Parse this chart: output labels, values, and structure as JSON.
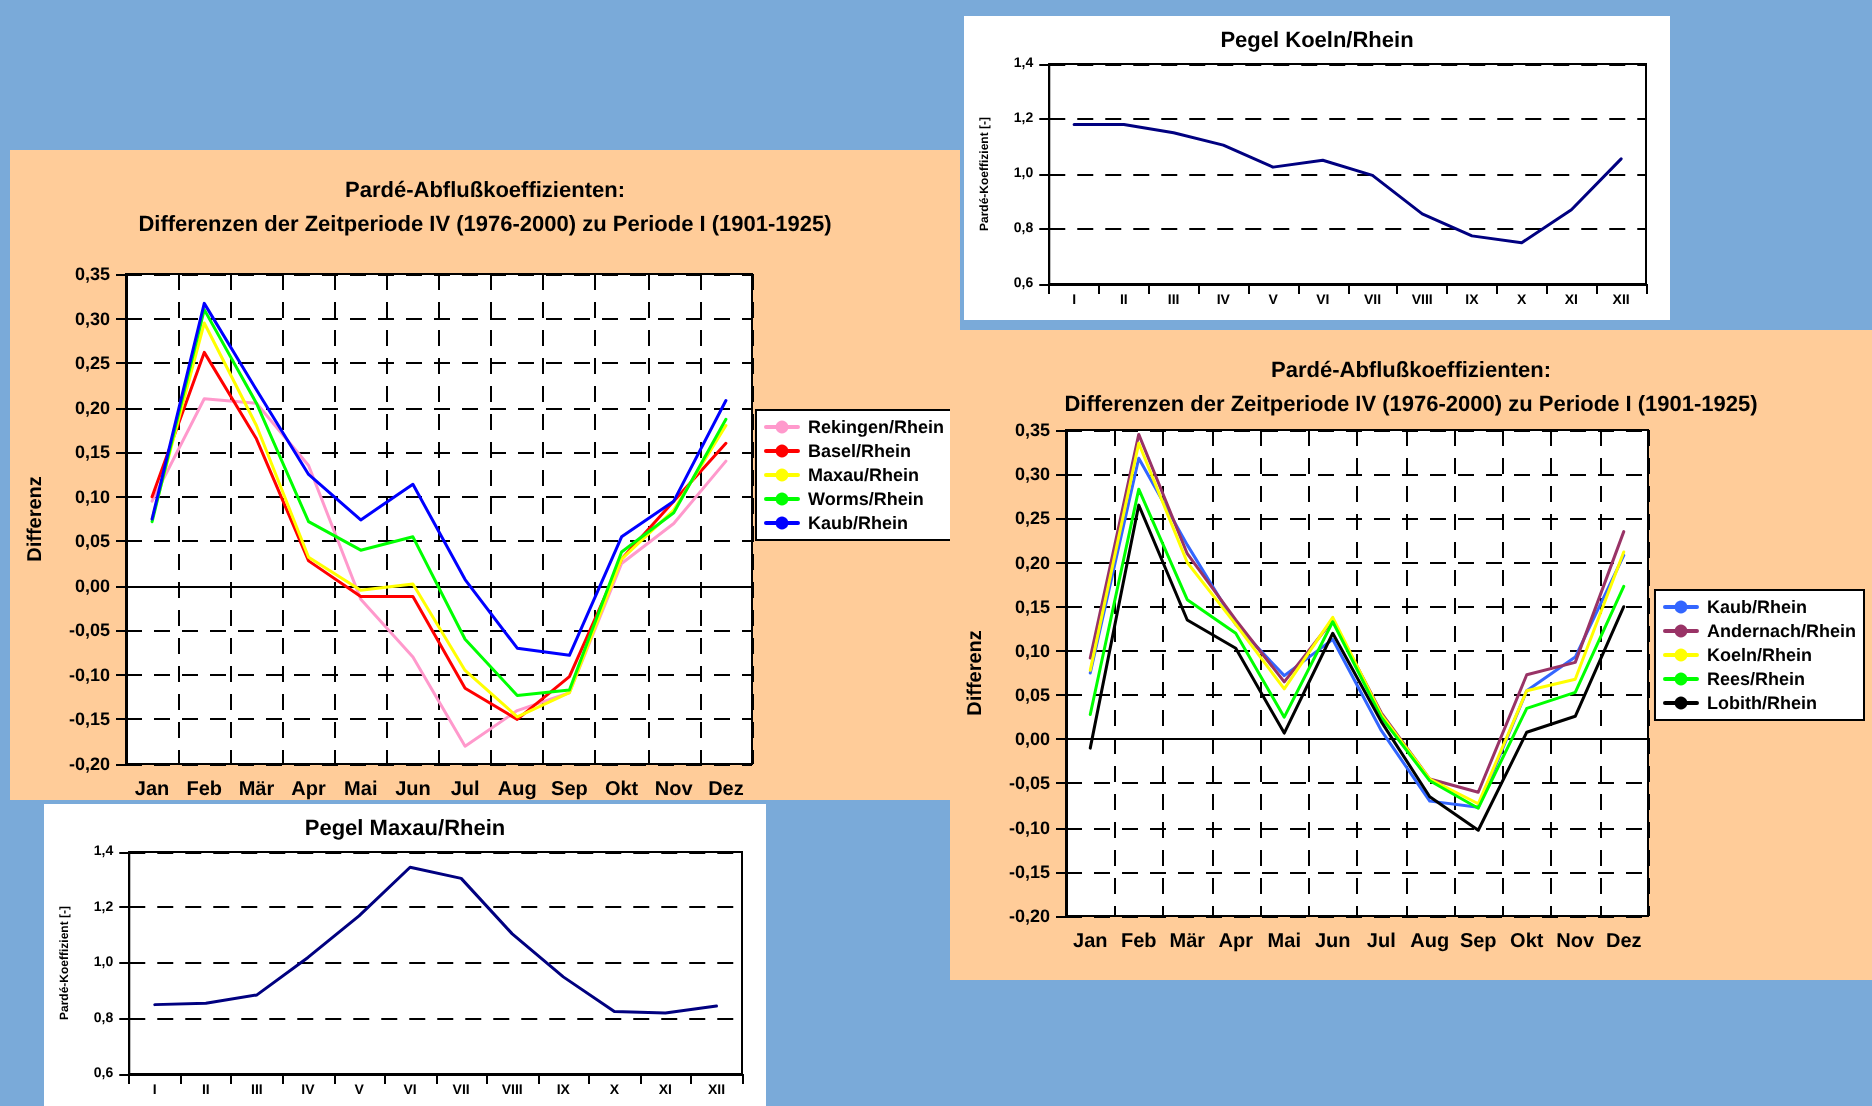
{
  "chart_data": [
    {
      "type": "line",
      "title": "Pardé-Abflußkoeffizienten:",
      "subtitle": "Differenzen der Zeitperiode IV (1976-2000) zu Periode I (1901-1925)",
      "ylabel": "Differenz",
      "categories": [
        "Jan",
        "Feb",
        "Mär",
        "Apr",
        "Mai",
        "Jun",
        "Jul",
        "Aug",
        "Sep",
        "Okt",
        "Nov",
        "Dez"
      ],
      "series": [
        {
          "name": "Rekingen/Rhein",
          "color": "#ff99cc",
          "values": [
            0.095,
            0.21,
            0.205,
            0.135,
            -0.015,
            -0.08,
            -0.18,
            -0.14,
            -0.12,
            0.025,
            0.07,
            0.14
          ]
        },
        {
          "name": "Basel/Rhein",
          "color": "#ff0000",
          "values": [
            0.1,
            0.262,
            0.165,
            0.028,
            -0.012,
            -0.012,
            -0.115,
            -0.15,
            -0.102,
            0.03,
            0.095,
            0.16
          ]
        },
        {
          "name": "Maxau/Rhein",
          "color": "#ffff00",
          "values": [
            0.075,
            0.295,
            0.18,
            0.032,
            -0.005,
            0.002,
            -0.095,
            -0.147,
            -0.12,
            0.03,
            0.085,
            0.18
          ]
        },
        {
          "name": "Worms/Rhein",
          "color": "#00ff00",
          "values": [
            0.072,
            0.31,
            0.205,
            0.072,
            0.04,
            0.055,
            -0.06,
            -0.123,
            -0.117,
            0.038,
            0.082,
            0.187
          ]
        },
        {
          "name": "Kaub/Rhein",
          "color": "#0000ff",
          "values": [
            0.075,
            0.317,
            0.22,
            0.125,
            0.074,
            0.114,
            0.007,
            -0.07,
            -0.078,
            0.055,
            0.095,
            0.208
          ]
        }
      ],
      "ylim": [
        -0.2,
        0.35
      ],
      "yticks": [
        {
          "value": -0.2,
          "label": "-0,20"
        },
        {
          "value": -0.15,
          "label": "-0,15"
        },
        {
          "value": -0.1,
          "label": "-0,10"
        },
        {
          "value": -0.05,
          "label": "-0,05"
        },
        {
          "value": 0,
          "label": "0,00"
        },
        {
          "value": 0.05,
          "label": "0,05"
        },
        {
          "value": 0.1,
          "label": "0,10"
        },
        {
          "value": 0.15,
          "label": "0,15"
        },
        {
          "value": 0.2,
          "label": "0,20"
        },
        {
          "value": 0.25,
          "label": "0,25"
        },
        {
          "value": 0.3,
          "label": "0,30"
        },
        {
          "value": 0.35,
          "label": "0,35"
        }
      ],
      "grid": true,
      "legend": "right",
      "marker": "none",
      "line_style": "solid"
    },
    {
      "type": "line",
      "title": "Pegel Koeln/Rhein",
      "ylabel": "Pardé-Koeffizient [-]",
      "categories": [
        "I",
        "II",
        "III",
        "IV",
        "V",
        "VI",
        "VII",
        "VIII",
        "IX",
        "X",
        "XI",
        "XII"
      ],
      "series": [
        {
          "color": "#000080",
          "values": [
            1.18,
            1.18,
            1.15,
            1.105,
            1.025,
            1.05,
            0.995,
            0.855,
            0.775,
            0.75,
            0.87,
            1.055
          ]
        }
      ],
      "ylim": [
        0.6,
        1.4
      ],
      "yticks": [
        {
          "value": 0.6,
          "label": "0,6"
        },
        {
          "value": 0.8,
          "label": "0,8"
        },
        {
          "value": 1.0,
          "label": "1,0"
        },
        {
          "value": 1.2,
          "label": "1,2"
        },
        {
          "value": 1.4,
          "label": "1,4"
        }
      ],
      "grid": "y",
      "marker": "none",
      "line_style": "solid"
    },
    {
      "type": "line",
      "title": "Pardé-Abflußkoeffizienten:",
      "subtitle": "Differenzen der Zeitperiode IV (1976-2000) zu Periode I (1901-1925)",
      "ylabel": "Differenz",
      "categories": [
        "Jan",
        "Feb",
        "Mär",
        "Apr",
        "Mai",
        "Jun",
        "Jul",
        "Aug",
        "Sep",
        "Okt",
        "Nov",
        "Dez"
      ],
      "series": [
        {
          "name": "Kaub/Rhein",
          "color": "#3366ff",
          "values": [
            0.075,
            0.318,
            0.22,
            0.13,
            0.072,
            0.113,
            0.01,
            -0.07,
            -0.077,
            0.055,
            0.093,
            0.208
          ]
        },
        {
          "name": "Andernach/Rhein",
          "color": "#993366",
          "values": [
            0.092,
            0.345,
            0.21,
            0.135,
            0.065,
            0.135,
            0.03,
            -0.045,
            -0.06,
            0.073,
            0.087,
            0.235
          ]
        },
        {
          "name": "Koeln/Rhein",
          "color": "#ffff00",
          "values": [
            0.078,
            0.335,
            0.2,
            0.13,
            0.057,
            0.138,
            0.028,
            -0.045,
            -0.073,
            0.055,
            0.068,
            0.212
          ]
        },
        {
          "name": "Rees/Rhein",
          "color": "#00ff00",
          "values": [
            0.028,
            0.283,
            0.158,
            0.12,
            0.025,
            0.133,
            0.025,
            -0.047,
            -0.078,
            0.035,
            0.053,
            0.173
          ]
        },
        {
          "name": "Lobith/Rhein",
          "color": "#000000",
          "values": [
            -0.01,
            0.265,
            0.135,
            0.103,
            0.007,
            0.12,
            0.02,
            -0.065,
            -0.103,
            0.008,
            0.026,
            0.15
          ]
        }
      ],
      "ylim": [
        -0.2,
        0.35
      ],
      "yticks": [
        {
          "value": -0.2,
          "label": "-0,20"
        },
        {
          "value": -0.15,
          "label": "-0,15"
        },
        {
          "value": -0.1,
          "label": "-0,10"
        },
        {
          "value": -0.05,
          "label": "-0,05"
        },
        {
          "value": 0,
          "label": "0,00"
        },
        {
          "value": 0.05,
          "label": "0,05"
        },
        {
          "value": 0.1,
          "label": "0,10"
        },
        {
          "value": 0.15,
          "label": "0,15"
        },
        {
          "value": 0.2,
          "label": "0,20"
        },
        {
          "value": 0.25,
          "label": "0,25"
        },
        {
          "value": 0.3,
          "label": "0,30"
        },
        {
          "value": 0.35,
          "label": "0,35"
        }
      ],
      "grid": true,
      "legend": "right",
      "marker": "none",
      "line_style": "solid"
    },
    {
      "type": "line",
      "title": "Pegel Maxau/Rhein",
      "ylabel": "Pardé-Koeffizient [-]",
      "categories": [
        "I",
        "II",
        "III",
        "IV",
        "V",
        "VI",
        "VII",
        "VIII",
        "IX",
        "X",
        "XI",
        "XII"
      ],
      "series": [
        {
          "color": "#000080",
          "values": [
            0.85,
            0.855,
            0.885,
            1.02,
            1.17,
            1.345,
            1.305,
            1.105,
            0.95,
            0.825,
            0.82,
            0.845
          ]
        }
      ],
      "ylim": [
        0.6,
        1.4
      ],
      "yticks": [
        {
          "value": 0.6,
          "label": "0,6"
        },
        {
          "value": 0.8,
          "label": "0,8"
        },
        {
          "value": 1.0,
          "label": "1,0"
        },
        {
          "value": 1.2,
          "label": "1,2"
        },
        {
          "value": 1.4,
          "label": "1,4"
        }
      ],
      "grid": "y",
      "marker": "none",
      "line_style": "solid"
    }
  ]
}
